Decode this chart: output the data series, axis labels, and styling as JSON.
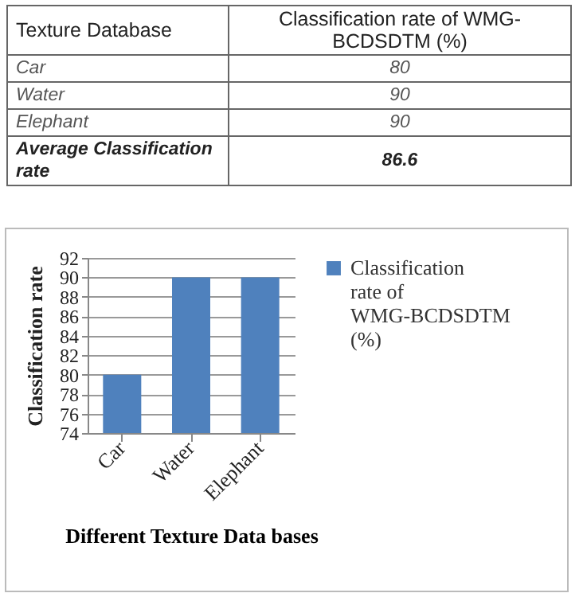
{
  "chart_data": {
    "type": "bar",
    "xlabel": "Different Texture Data bases",
    "ylabel": "Classification rate",
    "categories": [
      "Car",
      "Water",
      "Elephant"
    ],
    "series": [
      {
        "name": "Classification rate of WMG-BCDSDTM (%)",
        "color": "#4f81bd",
        "values": [
          80,
          90,
          90
        ]
      }
    ],
    "ylim": [
      74,
      92
    ],
    "yticks": [
      74,
      76,
      78,
      80,
      82,
      84,
      86,
      88,
      90,
      92
    ],
    "grid": "y",
    "legend": "right",
    "annotations": [
      "Texture Database",
      "Classification rate of WMG-BCDSDTM (%)",
      "Car",
      "80",
      "Water",
      "90",
      "Elephant",
      "90",
      "Average Classification rate",
      "86.6"
    ]
  }
}
